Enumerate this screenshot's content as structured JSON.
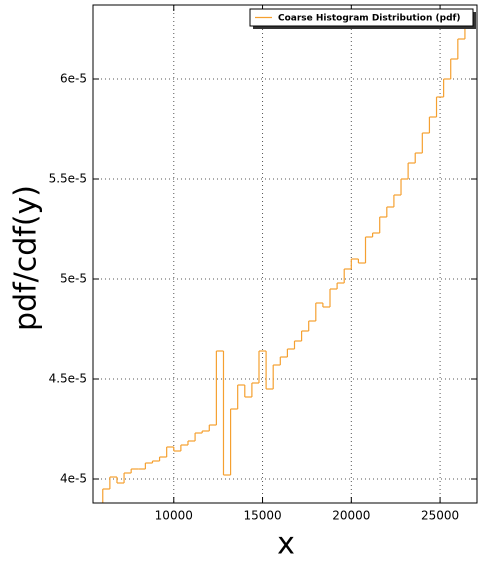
{
  "chart_data": {
    "type": "histogram",
    "series": [
      {
        "name": "Coarse Histogram Distribution (pdf)",
        "color": "#f5a030",
        "bins": [
          6000,
          6400,
          6800,
          7200,
          7600,
          8000,
          8400,
          8800,
          9200,
          9600,
          10000,
          10400,
          10800,
          11200,
          11600,
          12000,
          12400,
          12800,
          13200,
          13600,
          14000,
          14400,
          14800,
          15200,
          15600,
          16000,
          16400,
          16800,
          17200,
          17600,
          18000,
          18400,
          18800,
          19200,
          19600,
          20000,
          20400,
          20800,
          21200,
          21600,
          22000,
          22400,
          22800,
          23200,
          23600,
          24000,
          24400,
          24800,
          25200,
          25600,
          26000,
          26400,
          26800
        ],
        "values": [
          3.95e-05,
          4.01e-05,
          3.98e-05,
          4.03e-05,
          4.05e-05,
          4.05e-05,
          4.08e-05,
          4.09e-05,
          4.11e-05,
          4.16e-05,
          4.14e-05,
          4.17e-05,
          4.19e-05,
          4.23e-05,
          4.24e-05,
          4.27e-05,
          4.64e-05,
          4.02e-05,
          4.35e-05,
          4.47e-05,
          4.41e-05,
          4.48e-05,
          4.64e-05,
          4.45e-05,
          4.57e-05,
          4.61e-05,
          4.65e-05,
          4.69e-05,
          4.74e-05,
          4.79e-05,
          4.88e-05,
          4.86e-05,
          4.95e-05,
          4.98e-05,
          5.05e-05,
          5.1e-05,
          5.08e-05,
          5.21e-05,
          5.23e-05,
          5.31e-05,
          5.36e-05,
          5.42e-05,
          5.5e-05,
          5.58e-05,
          5.63e-05,
          5.73e-05,
          5.81e-05,
          5.91e-05,
          6e-05,
          6.1e-05,
          6.2e-05,
          6.29e-05
        ]
      }
    ],
    "xlabel": "x",
    "ylabel": "pdf/cdf(y)",
    "xlim": [
      5450,
      27080
    ],
    "xticks": [
      10000,
      15000,
      20000,
      25000
    ],
    "ylim": [
      3.88e-05,
      6.37e-05
    ],
    "yticks": [
      {
        "value": 4e-05,
        "label": "4e-5"
      },
      {
        "value": 4.5e-05,
        "label": "4.5e-5"
      },
      {
        "value": 5e-05,
        "label": "5e-5"
      },
      {
        "value": 5.5e-05,
        "label": "5.5e-5"
      },
      {
        "value": 6e-05,
        "label": "6e-5"
      }
    ],
    "grid": true,
    "legend": "upper right"
  }
}
